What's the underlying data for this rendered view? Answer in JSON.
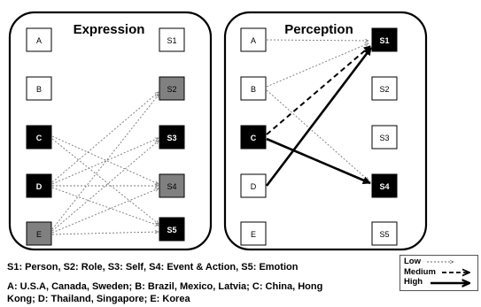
{
  "panels": {
    "expression": {
      "title": "Expression",
      "left_nodes": [
        "A",
        "B",
        "C",
        "D",
        "E"
      ],
      "right_nodes": [
        "S1",
        "S2",
        "S3",
        "S4",
        "S5"
      ]
    },
    "perception": {
      "title": "Perception",
      "left_nodes": [
        "A",
        "B",
        "C",
        "D",
        "E"
      ],
      "right_nodes": [
        "S1",
        "S2",
        "S3",
        "S4",
        "S5"
      ]
    }
  },
  "captions": {
    "line1": "S1: Person, S2: Role, S3: Self, S4: Event & Action, S5: Emotion",
    "line2": "A: U.S.A, Canada, Sweden;  B: Brazil, Mexico, Latvia; C: China, Hong",
    "line3": "Kong;  D: Thailand, Singapore; E: Korea"
  },
  "legend": {
    "low": "Low",
    "medium": "Medium",
    "high": "High"
  }
}
